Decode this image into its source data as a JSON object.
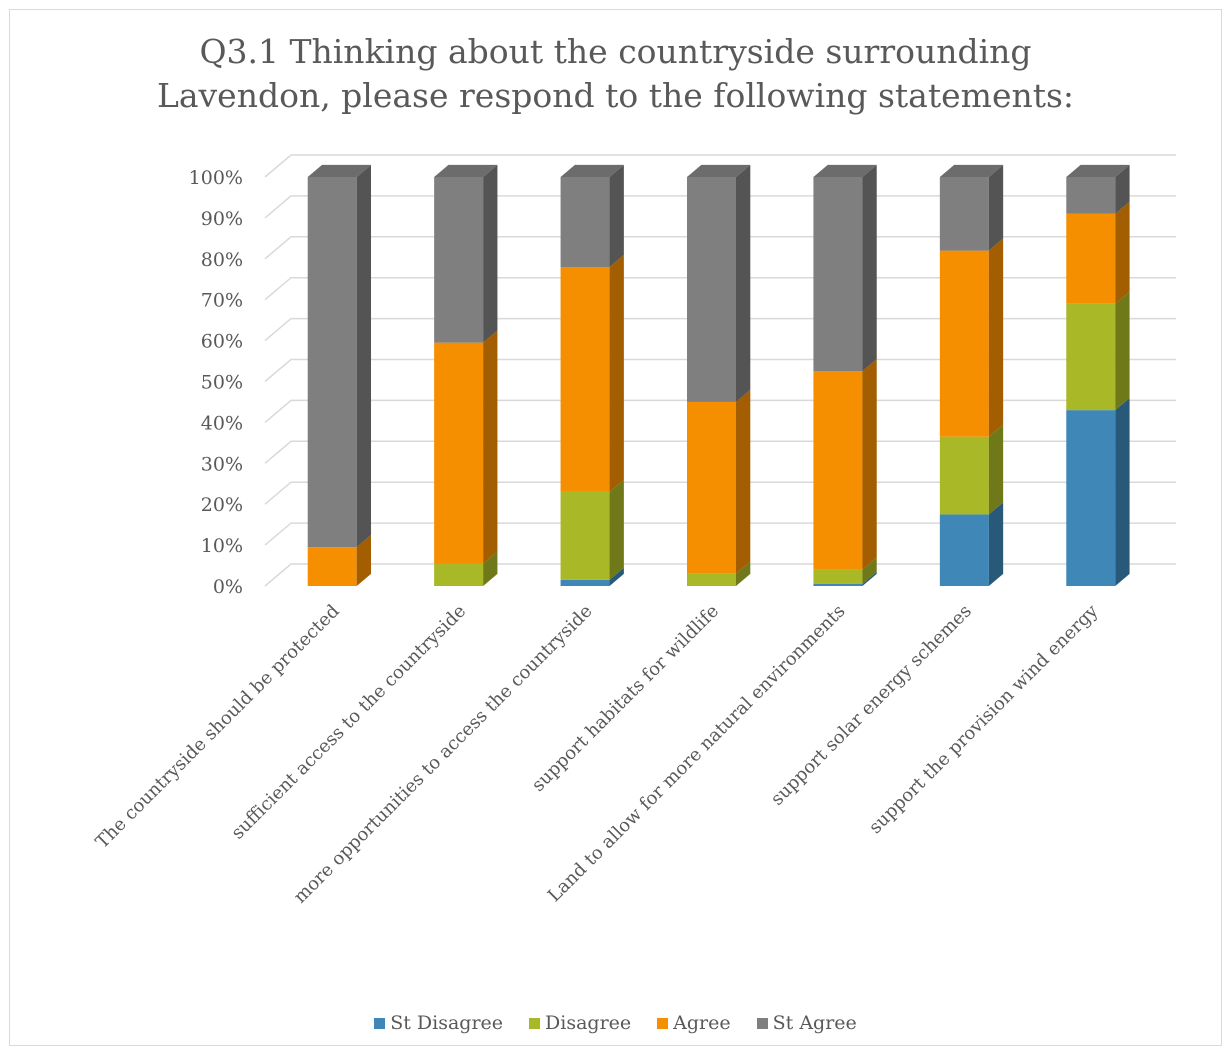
{
  "chart_data": {
    "type": "bar",
    "stacked": true,
    "percent": true,
    "three_d": true,
    "title_lines": [
      "Q3.1 Thinking about the countryside surrounding",
      "Lavendon, please respond to the following statements:"
    ],
    "categories": [
      "The countryside should be protected",
      "sufficient access to the countryside",
      "more opportunities to access the countryside",
      "support habitats for wildlife",
      "Land to allow for more natural environments",
      "support  solar energy schemes",
      "support the provision wind energy"
    ],
    "series": [
      {
        "name": "St Disagree",
        "color": "#3e87b6",
        "values": [
          0,
          0,
          1.5,
          0,
          0.5,
          17.5,
          43
        ]
      },
      {
        "name": "Disagree",
        "color": "#a8b826",
        "values": [
          0,
          5.5,
          21.5,
          3,
          3.5,
          19,
          26
        ]
      },
      {
        "name": "Agree",
        "color": "#f58f00",
        "values": [
          9.5,
          54,
          55,
          42,
          48.5,
          45.5,
          22
        ]
      },
      {
        "name": "St Agree",
        "color": "#7f7f7f",
        "values": [
          90.5,
          40.5,
          22,
          55,
          47.5,
          18,
          9
        ]
      }
    ],
    "yticks": [
      "0%",
      "10%",
      "20%",
      "30%",
      "40%",
      "50%",
      "60%",
      "70%",
      "80%",
      "90%",
      "100%"
    ],
    "ylim": [
      0,
      100
    ],
    "grid": true,
    "legend_position": "bottom"
  }
}
